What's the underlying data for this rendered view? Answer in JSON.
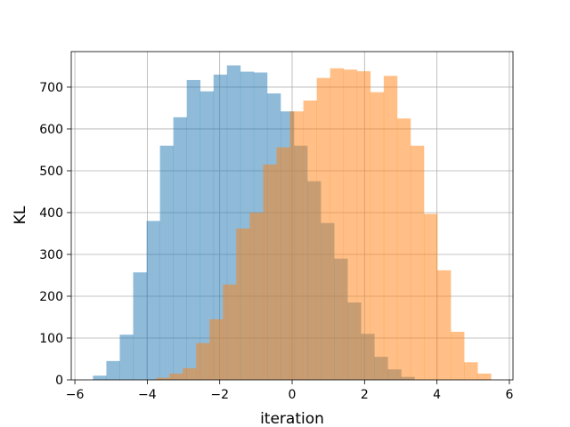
{
  "chart_data": {
    "type": "histogram",
    "title": "",
    "xlabel": "iteration",
    "ylabel": "KL",
    "xlim": [
      -6.1,
      6.1
    ],
    "ylim": [
      0,
      785
    ],
    "xticks": [
      -6,
      -4,
      -2,
      0,
      2,
      4,
      6
    ],
    "xtick_labels": [
      "−6",
      "−4",
      "−2",
      "0",
      "2",
      "4",
      "6"
    ],
    "yticks": [
      0,
      100,
      200,
      300,
      400,
      500,
      600,
      700
    ],
    "ytick_labels": [
      "0",
      "100",
      "200",
      "300",
      "400",
      "500",
      "600",
      "700"
    ],
    "grid": true,
    "overlap_color": "#c69c75",
    "series": [
      {
        "color": "#1f77b4",
        "alpha": 0.5,
        "bin_width": 0.37,
        "bins": [
          [
            -5.5,
            10
          ],
          [
            -5.13,
            45
          ],
          [
            -4.76,
            108
          ],
          [
            -4.39,
            257
          ],
          [
            -4.02,
            380
          ],
          [
            -3.65,
            560
          ],
          [
            -3.28,
            628
          ],
          [
            -2.91,
            717
          ],
          [
            -2.54,
            690
          ],
          [
            -2.17,
            730
          ],
          [
            -1.8,
            752
          ],
          [
            -1.43,
            737
          ],
          [
            -1.06,
            735
          ],
          [
            -0.69,
            685
          ],
          [
            -0.32,
            642
          ],
          [
            0.05,
            560
          ],
          [
            0.42,
            475
          ],
          [
            0.79,
            375
          ],
          [
            1.16,
            290
          ],
          [
            1.53,
            185
          ],
          [
            1.9,
            110
          ],
          [
            2.27,
            55
          ],
          [
            2.64,
            25
          ],
          [
            3.01,
            7
          ]
        ]
      },
      {
        "color": "#ff7f0e",
        "alpha": 0.5,
        "bin_width": 0.37,
        "bins": [
          [
            -3.76,
            5
          ],
          [
            -3.39,
            15
          ],
          [
            -3.02,
            28
          ],
          [
            -2.65,
            88
          ],
          [
            -2.28,
            145
          ],
          [
            -1.91,
            228
          ],
          [
            -1.54,
            362
          ],
          [
            -1.17,
            400
          ],
          [
            -0.8,
            515
          ],
          [
            -0.43,
            556
          ],
          [
            -0.06,
            642
          ],
          [
            0.31,
            668
          ],
          [
            0.68,
            722
          ],
          [
            1.05,
            745
          ],
          [
            1.42,
            742
          ],
          [
            1.79,
            738
          ],
          [
            2.16,
            688
          ],
          [
            2.53,
            727
          ],
          [
            2.9,
            625
          ],
          [
            3.27,
            560
          ],
          [
            3.64,
            397
          ],
          [
            4.01,
            262
          ],
          [
            4.38,
            115
          ],
          [
            4.75,
            42
          ],
          [
            5.12,
            15
          ]
        ]
      }
    ]
  }
}
